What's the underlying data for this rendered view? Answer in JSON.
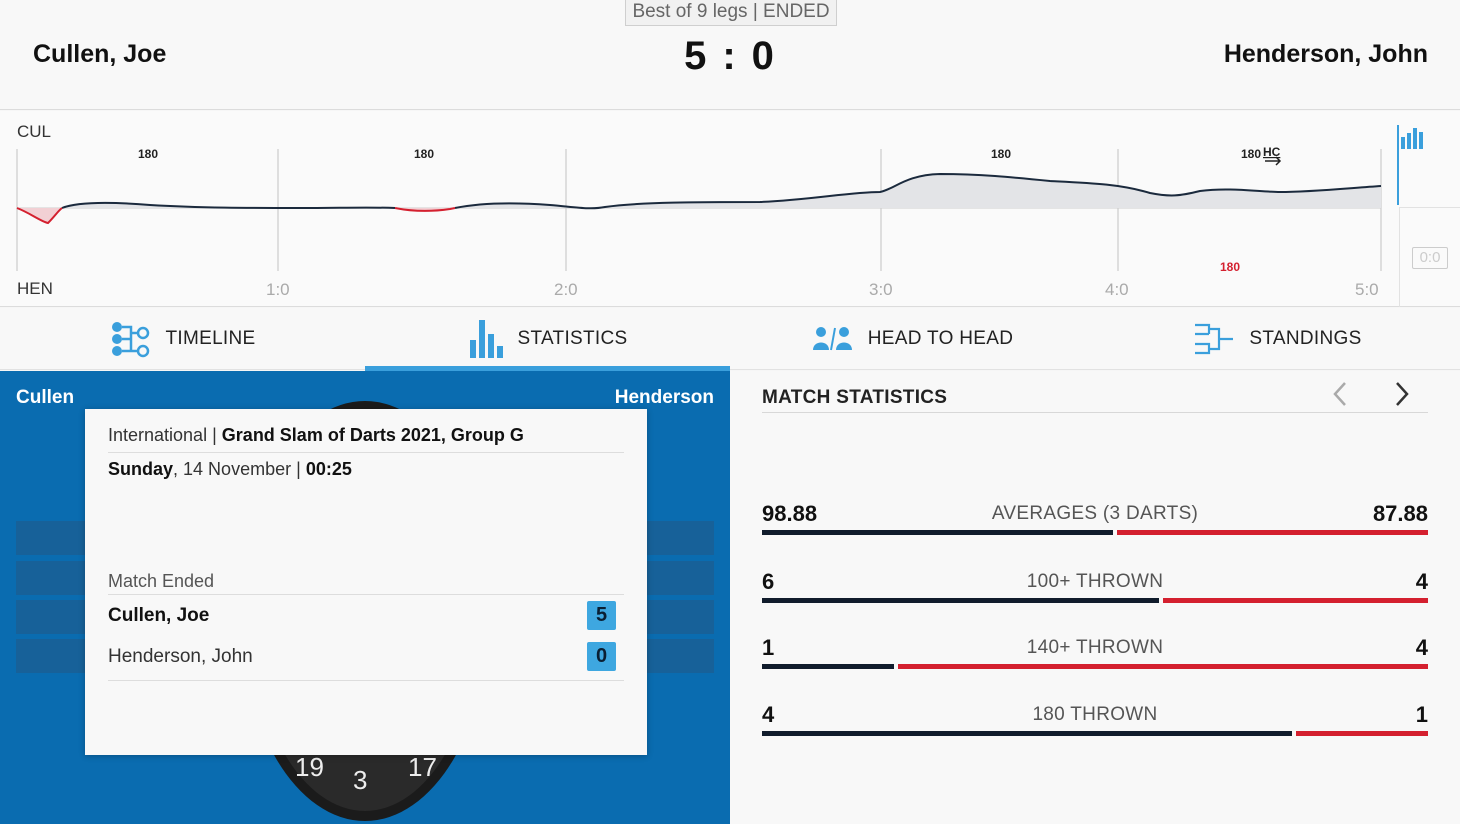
{
  "header": {
    "format": "Best of 9 legs | ENDED",
    "home_player": "Cullen, Joe",
    "away_player": "Henderson, John",
    "home_score": "5",
    "away_score": "0",
    "score_separator": ":"
  },
  "momentum": {
    "home_abbr": "CUL",
    "away_abbr": "HEN",
    "leg_labels": [
      "1:0",
      "2:0",
      "3:0",
      "4:0",
      "5:0"
    ],
    "home_180_markers": [
      "180",
      "180",
      "180",
      "180"
    ],
    "away_180_markers": [
      "180"
    ],
    "hc_label": "HC",
    "side_badge": "0:0",
    "colors": {
      "home": "#1b2a3d",
      "away": "#d4202f",
      "fill": "#e3e4e7",
      "accent": "#3a9fdc"
    }
  },
  "tabs": [
    {
      "label": "TIMELINE",
      "icon": "timeline-icon",
      "active": false
    },
    {
      "label": "STATISTICS",
      "icon": "bar-chart-icon",
      "active": true
    },
    {
      "label": "HEAD TO HEAD",
      "icon": "head-to-head-icon",
      "active": false
    },
    {
      "label": "STANDINGS",
      "icon": "bracket-icon",
      "active": false
    }
  ],
  "panel": {
    "home_short": "Cullen",
    "away_short": "Henderson",
    "board_numbers": [
      "19",
      "3",
      "17"
    ]
  },
  "card": {
    "category": "International",
    "separator": "|",
    "tournament": "Grand Slam of Darts 2021, Group G",
    "weekday": "Sunday",
    "date": "14 November",
    "time": "00:25",
    "status": "Match Ended",
    "rows": [
      {
        "name": "Cullen, Joe",
        "score": "5",
        "winner": true
      },
      {
        "name": "Henderson, John",
        "score": "0",
        "winner": false
      }
    ]
  },
  "stats": {
    "title": "MATCH STATISTICS",
    "prev_icon": "chevron-left-icon",
    "next_icon": "chevron-right-icon",
    "items": [
      {
        "label": "AVERAGES (3 DARTS)",
        "home": "98.88",
        "away": "87.88",
        "home_share": 0.53
      },
      {
        "label": "100+ THROWN",
        "home": "6",
        "away": "4",
        "home_share": 0.6
      },
      {
        "label": "140+ THROWN",
        "home": "1",
        "away": "4",
        "home_share": 0.2
      },
      {
        "label": "180 THROWN",
        "home": "4",
        "away": "1",
        "home_share": 0.8
      }
    ]
  }
}
